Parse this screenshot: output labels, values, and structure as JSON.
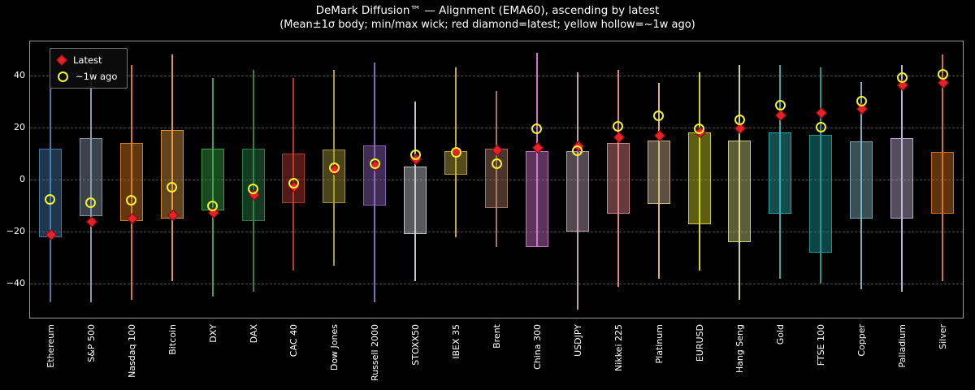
{
  "chart_data": {
    "type": "candlestick-box-whisker",
    "title": "DeMark Diffusion™ — Alignment (EMA60), ascending by latest",
    "subtitle": "(Mean±1σ body; min/max wick; red diamond=latest; yellow hollow=~1w ago)",
    "ylim": [
      -53,
      53
    ],
    "yticks": [
      -40,
      -20,
      0,
      20,
      40
    ],
    "grid": "dashed-horizontal",
    "legend": {
      "position": "upper-left",
      "latest_label": "Latest",
      "week_ago_label": "~1w ago",
      "latest_color": "#e62129",
      "latest_edge_color": "#7c0a10",
      "week_ago_color": "#f2f22e"
    },
    "points": [
      {
        "label": "Ethereum",
        "color": "#4a81b4",
        "min": -47,
        "max": 35,
        "body_low": -22,
        "body_high": 12,
        "latest": -21,
        "week_ago": -7.5
      },
      {
        "label": "S&P 500",
        "color": "#8fa1b3",
        "min": -47,
        "max": 43,
        "body_low": -14,
        "body_high": 16,
        "latest": -16,
        "week_ago": -9
      },
      {
        "label": "Nasdaq 100",
        "color": "#e6821e",
        "min": -46,
        "max": 44,
        "body_low": -16,
        "body_high": 14,
        "latest": -14.5,
        "week_ago": -8
      },
      {
        "label": "Bitcoin",
        "color": "#eda13f",
        "min": -39,
        "max": 48,
        "body_low": -15,
        "body_high": 19,
        "latest": -13.5,
        "week_ago": -3
      },
      {
        "label": "DXY",
        "color": "#3fae4c",
        "min": -45,
        "max": 39,
        "body_low": -12,
        "body_high": 12,
        "latest": -12.5,
        "week_ago": -10
      },
      {
        "label": "DAX",
        "color": "#2f8b4e",
        "min": -43,
        "max": 42,
        "body_low": -16,
        "body_high": 12,
        "latest": -5.5,
        "week_ago": -3.5
      },
      {
        "label": "CAC 40",
        "color": "#c43d32",
        "min": -35,
        "max": 39,
        "body_low": -9,
        "body_high": 10,
        "latest": -2.5,
        "week_ago": -1.5
      },
      {
        "label": "Dow Jones",
        "color": "#b3a23b",
        "min": -33,
        "max": 42,
        "body_low": -9,
        "body_high": 11.5,
        "latest": 4,
        "week_ago": 4.5
      },
      {
        "label": "Russell 2000",
        "color": "#9469c8",
        "min": -47,
        "max": 45,
        "body_low": -10,
        "body_high": 13,
        "latest": 5.5,
        "week_ago": 6
      },
      {
        "label": "STOXX50",
        "color": "#cfd3d8",
        "min": -39,
        "max": 30,
        "body_low": -21,
        "body_high": 5,
        "latest": 8,
        "week_ago": 9.5
      },
      {
        "label": "IBEX 35",
        "color": "#c9b23e",
        "min": -22,
        "max": 43,
        "body_low": 2,
        "body_high": 11,
        "latest": 11,
        "week_ago": 10.5
      },
      {
        "label": "Brent",
        "color": "#ad7f68",
        "min": -26,
        "max": 34,
        "body_low": -11,
        "body_high": 12,
        "latest": 11.5,
        "week_ago": 6
      },
      {
        "label": "China 300",
        "color": "#da7ada",
        "min": -26,
        "max": 48.5,
        "body_low": -26,
        "body_high": 11,
        "latest": 12.5,
        "week_ago": 19.5
      },
      {
        "label": "USDJPY",
        "color": "#c9abbc",
        "min": -50,
        "max": 41,
        "body_low": -20,
        "body_high": 11,
        "latest": 13,
        "week_ago": 11
      },
      {
        "label": "Nikkei 225",
        "color": "#ec8c92",
        "min": -41,
        "max": 42,
        "body_low": -13,
        "body_high": 14,
        "latest": 16.5,
        "week_ago": 20.5
      },
      {
        "label": "Platinum",
        "color": "#dcc095",
        "min": -38,
        "max": 37,
        "body_low": -9.5,
        "body_high": 15,
        "latest": 17,
        "week_ago": 24.5
      },
      {
        "label": "EURUSD",
        "color": "#dede2e",
        "min": -35,
        "max": 41,
        "body_low": -17,
        "body_high": 18,
        "latest": 18.5,
        "week_ago": 19.5
      },
      {
        "label": "Hang Seng",
        "color": "#dbe08d",
        "min": -46,
        "max": 44,
        "body_low": -24,
        "body_high": 15,
        "latest": 20,
        "week_ago": 23
      },
      {
        "label": "Gold",
        "color": "#2fb7b7",
        "min": -38,
        "max": 44,
        "body_low": -13,
        "body_high": 18,
        "latest": 25,
        "week_ago": 28.5
      },
      {
        "label": "FTSE 100",
        "color": "#1fa3a3",
        "min": -40,
        "max": 43,
        "body_low": -28,
        "body_high": 17,
        "latest": 26,
        "week_ago": 20
      },
      {
        "label": "Copper",
        "color": "#86b7c9",
        "min": -42,
        "max": 37.5,
        "body_low": -15,
        "body_high": 14.5,
        "latest": 27.5,
        "week_ago": 30
      },
      {
        "label": "Palladium",
        "color": "#c9b9e2",
        "min": -43,
        "max": 44,
        "body_low": -15,
        "body_high": 16,
        "latest": 36.5,
        "week_ago": 39
      },
      {
        "label": "Silver",
        "color": "#e2791f",
        "min": -39,
        "max": 48,
        "body_low": -13,
        "body_high": 10.5,
        "latest": 37.5,
        "week_ago": 40.5
      }
    ]
  }
}
